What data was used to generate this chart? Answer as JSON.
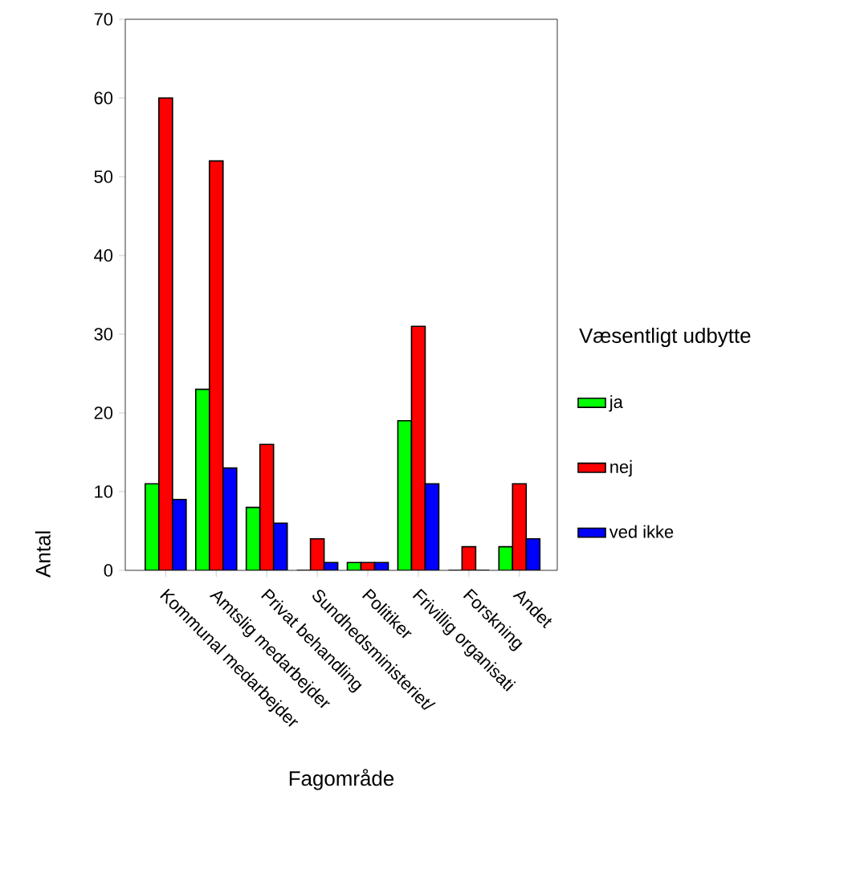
{
  "chart_data": {
    "type": "bar",
    "xlabel": "Fagområde",
    "ylabel": "Antal",
    "legend_title": "Væsentligt udbytte",
    "legend": "right",
    "grid": false,
    "categories": [
      "Kommunal medarbejder",
      "Amtslig medarbejder",
      "Privat behandling",
      "Sundhedsministeriet/",
      "Politiker",
      "Frivillig organisati",
      "Forskning",
      "Andet"
    ],
    "ylim": [
      0,
      70
    ],
    "yticks": [
      0,
      10,
      20,
      30,
      40,
      50,
      60,
      70
    ],
    "series": [
      {
        "name": "ja",
        "color": "#00ff00",
        "values": [
          11,
          23,
          8,
          0,
          1,
          19,
          0,
          3
        ]
      },
      {
        "name": "nej",
        "color": "#ff0000",
        "values": [
          60,
          52,
          16,
          4,
          1,
          31,
          3,
          11
        ]
      },
      {
        "name": "ved ikke",
        "color": "#0000ff",
        "values": [
          9,
          13,
          6,
          1,
          1,
          11,
          0,
          4
        ]
      }
    ]
  }
}
